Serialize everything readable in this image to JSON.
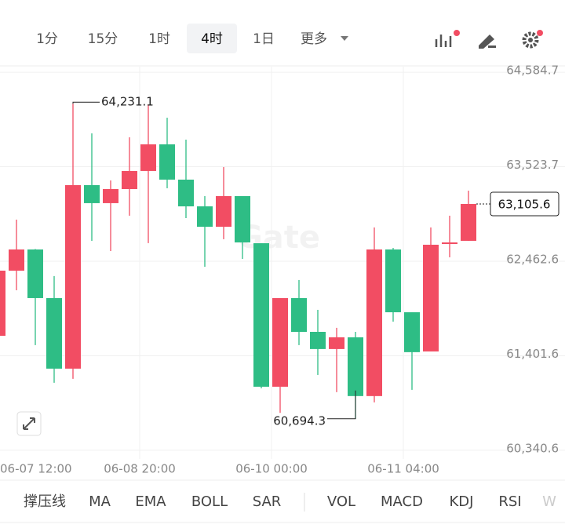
{
  "tabs": [
    "1分",
    "15分",
    "1时",
    "4时",
    "1日",
    "更多"
  ],
  "selected_tab": 3,
  "indicators": [
    "撑压线",
    "MA",
    "EMA",
    "BOLL",
    "SAR",
    "VOL",
    "MACD",
    "KDJ",
    "RSI",
    "W"
  ],
  "chart_data": {
    "type": "candlestick",
    "watermark": "Gate",
    "categories": [
      "06-07 12:00",
      null,
      null,
      null,
      null,
      null,
      null,
      null,
      "06-08 20:00",
      null,
      null,
      null,
      null,
      null,
      null,
      "06-10 00:00",
      null,
      null,
      null,
      null,
      null,
      null,
      "06-11 04:00",
      null,
      null,
      null
    ],
    "open": [
      61626,
      62357,
      62595,
      62049,
      61257,
      63317,
      63115,
      63273,
      63476,
      63775,
      63379,
      63079,
      62850,
      63194,
      62665,
      61054,
      62049,
      61670,
      61477,
      61609,
      60949,
      62595,
      61890,
      61450,
      62656,
      62692
    ],
    "high": [
      62489,
      62930,
      62600,
      62296,
      64231.1,
      63898,
      63370,
      63854,
      64224,
      64074,
      63828,
      63194,
      63520,
      63194,
      62665,
      62049,
      62252,
      61917,
      61715,
      61670,
      62842,
      62612,
      61890,
      62842,
      62974,
      63255
    ],
    "low": [
      61591,
      62137,
      61521,
      61098,
      61142,
      62692,
      62577,
      62974,
      62666,
      63282,
      62947,
      62401,
      62710,
      62489,
      61036,
      60760,
      61521,
      61186,
      60993,
      60694.3,
      60878,
      61785,
      61019,
      61450,
      62507,
      62692
    ],
    "close": [
      62357,
      62595,
      62049,
      61257,
      63317,
      63115,
      63273,
      63476,
      63775,
      63379,
      63079,
      62850,
      63194,
      62674,
      61054,
      62049,
      61670,
      61477,
      61609,
      60949,
      62595,
      61890,
      61442,
      62648,
      62674,
      63105.6
    ],
    "up_color": "#f24d63",
    "down_color": "#2ebd85",
    "high_label": "64,231.1",
    "low_label": "60,694.3",
    "last_label": "63,105.6",
    "ylim": [
      60243,
      64647
    ],
    "yticks": [
      {
        "value": 60340.6,
        "label": "60,340.6"
      },
      {
        "value": 61401.6,
        "label": "61,401.6"
      },
      {
        "value": 62462.6,
        "label": "62,462.6"
      },
      {
        "value": 63523.7,
        "label": "63,523.7"
      },
      {
        "value": 64584.7,
        "label": "64,584.7"
      }
    ],
    "grid": true
  }
}
